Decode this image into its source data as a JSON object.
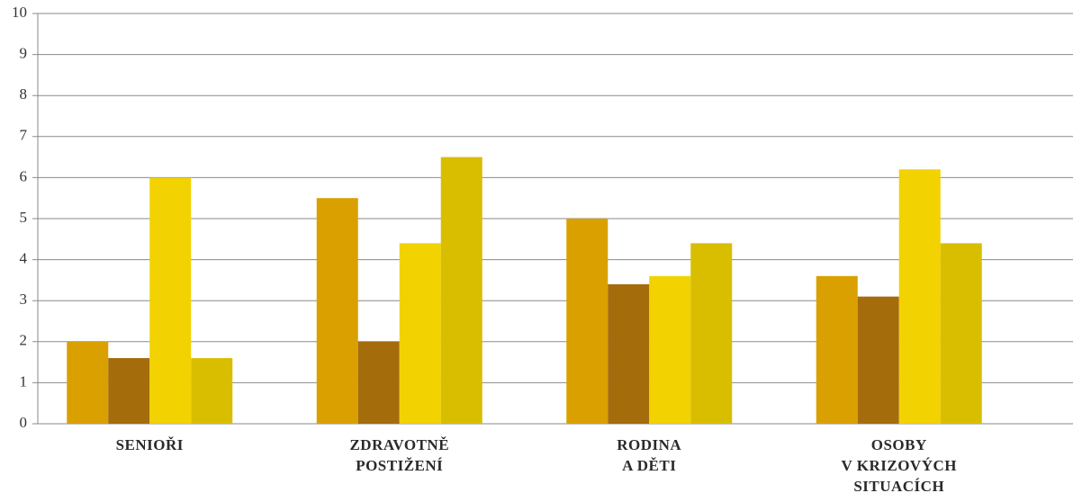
{
  "chart_data": {
    "type": "bar",
    "categories": [
      "SENIOŘI",
      "ZDRAVOTNĚ\nPOSTIŽENÍ",
      "RODINA\nA DĚTI",
      "OSOBY\nV KRIZOVÝCH\nSITUACÍCH"
    ],
    "series": [
      {
        "color": "#d9a000",
        "values": [
          2,
          5.5,
          5,
          3.6
        ]
      },
      {
        "color": "#a56c0c",
        "values": [
          1.6,
          2,
          3.4,
          3.1
        ]
      },
      {
        "color": "#f2d200",
        "values": [
          6,
          4.4,
          3.6,
          6.2
        ]
      },
      {
        "color": "#d9be00",
        "values": [
          1.6,
          6.5,
          4.4,
          4.4
        ]
      }
    ],
    "ylim": [
      0,
      10
    ],
    "yticks": [
      0,
      1,
      2,
      3,
      4,
      5,
      6,
      7,
      8,
      9,
      10
    ],
    "grid": true
  }
}
